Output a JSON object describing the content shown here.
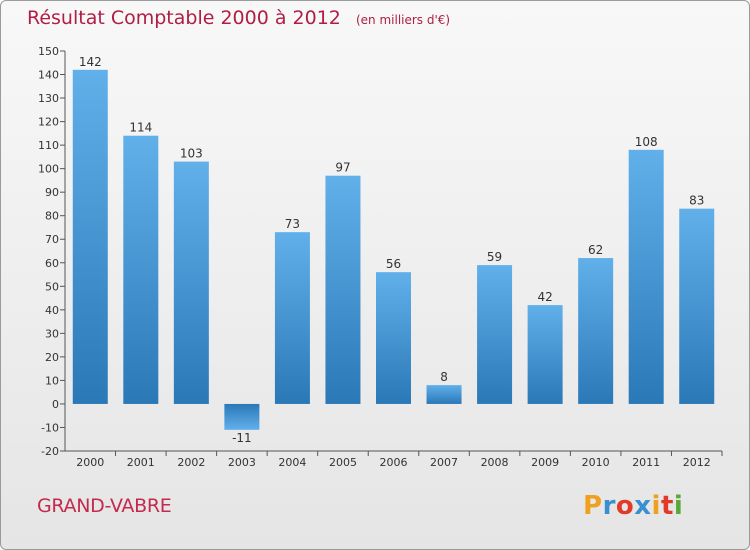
{
  "header": {
    "title": "Résultat Comptable 2000 à 2012",
    "unit": "(en milliers d'€)"
  },
  "footer": {
    "commune": "GRAND-VABRE",
    "logo": {
      "letters": [
        "P",
        "r",
        "o",
        "x",
        "i",
        "t",
        "i"
      ],
      "colors": [
        "#f0a020",
        "#3a8fd0",
        "#e03a2a",
        "#3a8fd0",
        "#f0a020",
        "#e03a2a",
        "#5aa83a"
      ]
    }
  },
  "colors": {
    "bar_light": "#61b0ea",
    "bar_dark": "#2b78b7",
    "title": "#b01e45"
  },
  "chart_data": {
    "type": "bar",
    "title": "Résultat Comptable 2000 à 2012",
    "categories": [
      "2000",
      "2001",
      "2002",
      "2003",
      "2004",
      "2005",
      "2006",
      "2007",
      "2008",
      "2009",
      "2010",
      "2011",
      "2012"
    ],
    "values": [
      142,
      114,
      103,
      -11,
      73,
      97,
      56,
      8,
      59,
      42,
      62,
      108,
      83
    ],
    "data_labels": [
      "142",
      "114",
      "103",
      "-11",
      "73",
      "97",
      "56",
      "8",
      "59",
      "42",
      "62",
      "108",
      "83"
    ],
    "ylim": [
      -20,
      150
    ],
    "yticks": [
      -20,
      -10,
      0,
      10,
      20,
      30,
      40,
      50,
      60,
      70,
      80,
      90,
      100,
      110,
      120,
      130,
      140,
      150
    ],
    "grid": false
  }
}
